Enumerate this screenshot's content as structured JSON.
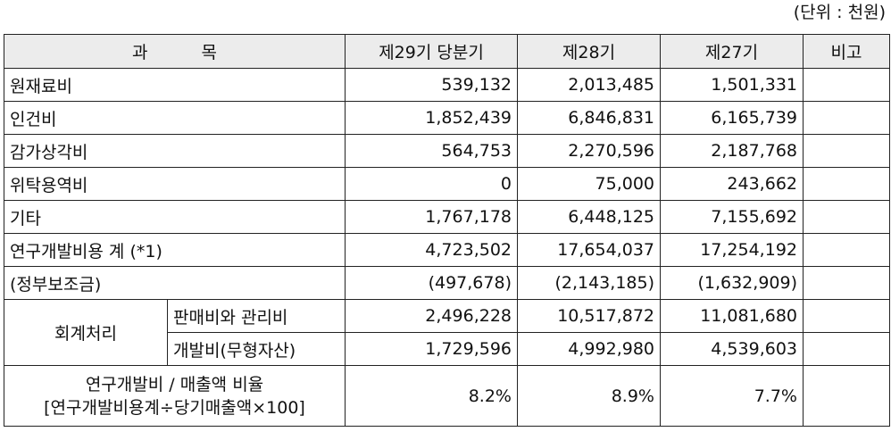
{
  "unit_note": "(단위 : 천원)",
  "header": {
    "subject_left": "과",
    "subject_right": "목",
    "col1": "제29기 당분기",
    "col2": "제28기",
    "col3": "제27기",
    "col4": "비고"
  },
  "rows": [
    {
      "label": "원재료비",
      "v1": "539,132",
      "v2": "2,013,485",
      "v3": "1,501,331",
      "note": ""
    },
    {
      "label": "인건비",
      "v1": "1,852,439",
      "v2": "6,846,831",
      "v3": "6,165,739",
      "note": ""
    },
    {
      "label": "감가상각비",
      "v1": "564,753",
      "v2": "2,270,596",
      "v3": "2,187,768",
      "note": ""
    },
    {
      "label": "위탁용역비",
      "v1": "0",
      "v2": "75,000",
      "v3": "243,662",
      "note": ""
    },
    {
      "label": "기타",
      "v1": "1,767,178",
      "v2": "6,448,125",
      "v3": "7,155,692",
      "note": ""
    },
    {
      "label": "연구개발비용 계 (*1)",
      "v1": "4,723,502",
      "v2": "17,654,037",
      "v3": "17,254,192",
      "note": ""
    },
    {
      "label": "(정부보조금)",
      "v1": "(497,678)",
      "v2": "(2,143,185)",
      "v3": "(1,632,909)",
      "note": ""
    }
  ],
  "accounting": {
    "group_label": "회계처리",
    "sub": [
      {
        "label": "판매비와 관리비",
        "v1": "2,496,228",
        "v2": "10,517,872",
        "v3": "11,081,680",
        "note": ""
      },
      {
        "label": "개발비(무형자산)",
        "v1": "1,729,596",
        "v2": "4,992,980",
        "v3": "4,539,603",
        "note": ""
      }
    ]
  },
  "ratio": {
    "label_line1": "연구개발비 / 매출액 비율",
    "label_line2": "[연구개발비용계÷당기매출액×100]",
    "v1": "8.2%",
    "v2": "8.9%",
    "v3": "7.7%",
    "note": ""
  }
}
